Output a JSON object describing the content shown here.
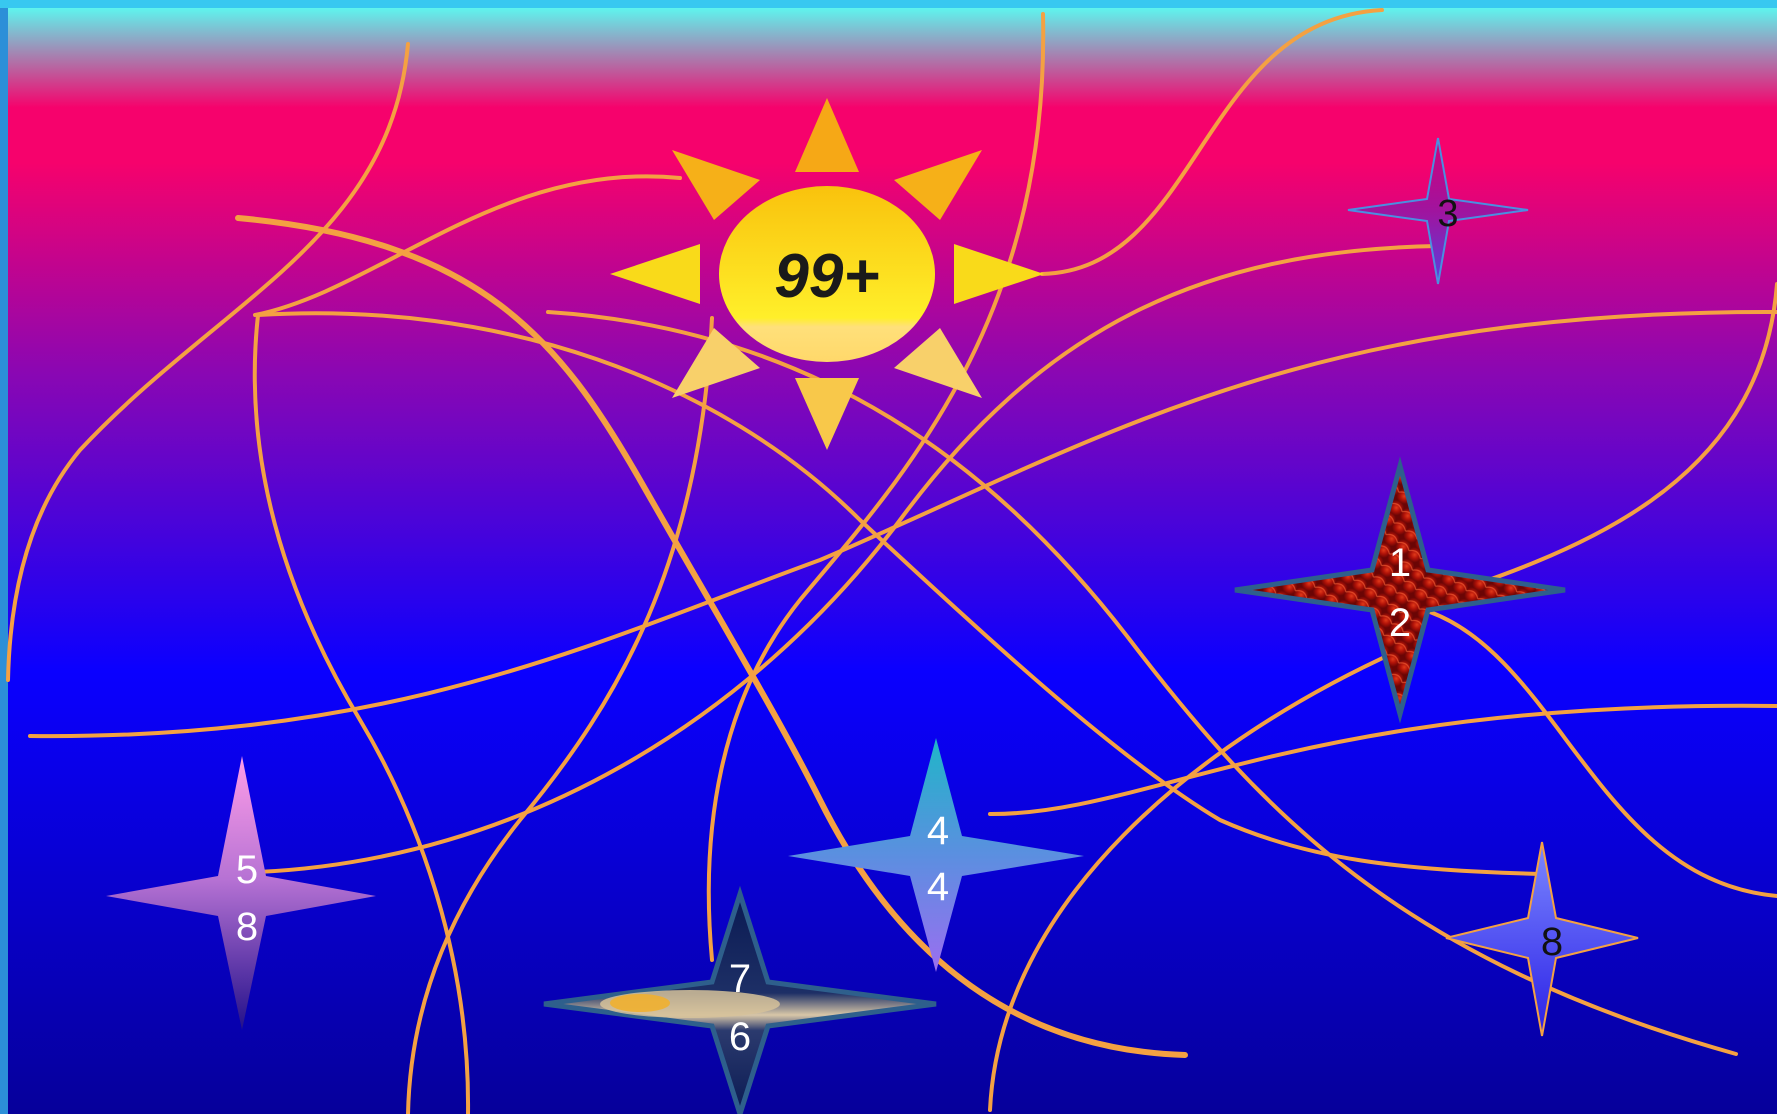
{
  "sun": {
    "label": "99+",
    "colors": {
      "rays": "#f7b21a",
      "core_top": "#f9c20d",
      "core_bottom": "#ffe94a",
      "text": "#1a1a1a"
    }
  },
  "stars": [
    {
      "id": "star-3",
      "lines": [
        "3"
      ],
      "fill": "pink-violet",
      "text_color": "#111111"
    },
    {
      "id": "star-12",
      "lines": [
        "1",
        "2"
      ],
      "fill": "red-flower",
      "text_color": "#ffffff"
    },
    {
      "id": "star-44",
      "lines": [
        "4",
        "4"
      ],
      "fill": "blue-gradient",
      "text_color": "#ffffff"
    },
    {
      "id": "star-58",
      "lines": [
        "5",
        "8"
      ],
      "fill": "pink-purple",
      "text_color": "#ffffff"
    },
    {
      "id": "star-76",
      "lines": [
        "7",
        "6"
      ],
      "fill": "shell-photo",
      "text_color": "#ffffff"
    },
    {
      "id": "star-8",
      "lines": [
        "8"
      ],
      "fill": "periwinkle",
      "text_color": "#111111"
    }
  ],
  "colors": {
    "sky_top": "#5ef4ee",
    "sky_magenta": "#f6026c",
    "sky_purple": "#8a07b3",
    "sky_blue": "#0a00ff",
    "sky_bottom": "#06009a",
    "curve": "#f4a142"
  }
}
